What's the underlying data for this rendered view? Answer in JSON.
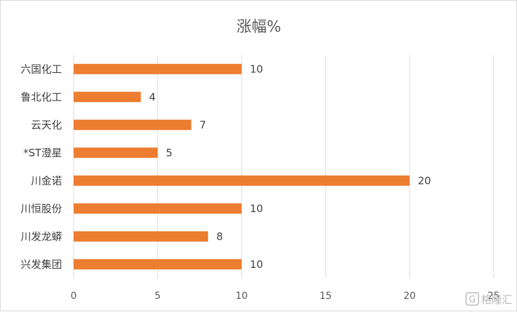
{
  "chart_data": {
    "type": "bar",
    "orientation": "horizontal",
    "title": "涨幅%",
    "categories": [
      "六国化工",
      "鲁北化工",
      "云天化",
      "*ST澄星",
      "川金诺",
      "川恒股份",
      "川发龙蟒",
      "兴发集团"
    ],
    "values": [
      10,
      4,
      7,
      5,
      20,
      10,
      8,
      10
    ],
    "xlim": [
      0,
      25
    ],
    "xticks": [
      0,
      5,
      10,
      15,
      20,
      25
    ],
    "grid": true,
    "legend": "none",
    "bar_color": "#ED7D31"
  },
  "watermark": {
    "text": "格隆汇",
    "icon": "g-logo-icon"
  }
}
